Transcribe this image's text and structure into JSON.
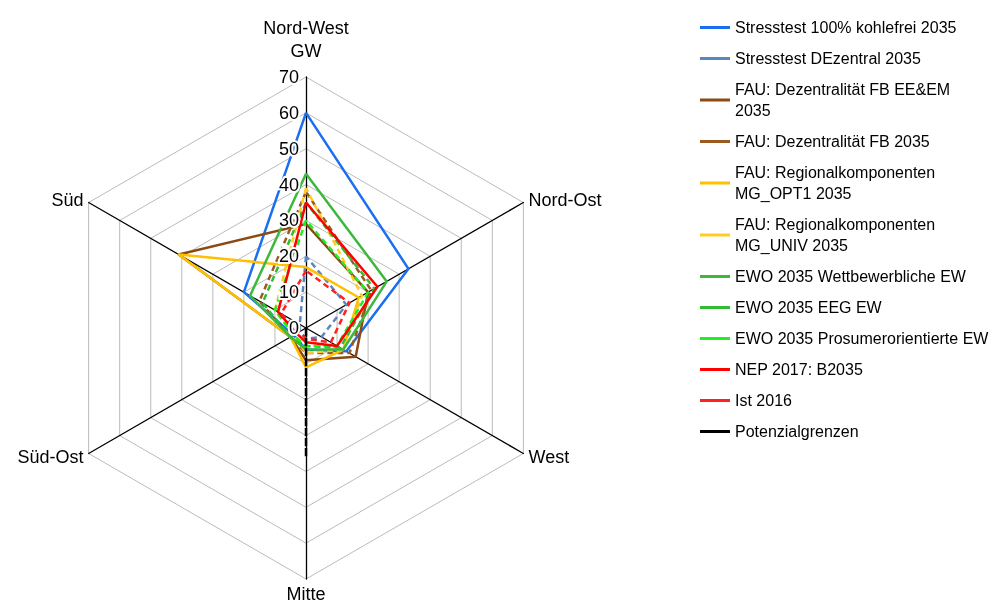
{
  "chart_data": {
    "type": "radar",
    "ylabel": "GW",
    "categories": [
      "Nord-West",
      "Nord-Ost",
      "West",
      "Mitte",
      "Süd-Ost",
      "Süd"
    ],
    "ylim": [
      0,
      70
    ],
    "yticks": [
      0,
      10,
      20,
      30,
      40,
      50,
      60,
      70
    ],
    "grid": true,
    "legend": "right",
    "marker": "none",
    "series": [
      {
        "name": "Stresstest 100% kohlefrei 2035",
        "color": "#1a6ff0",
        "line_style": "solid",
        "values": [
          60,
          33,
          13,
          6,
          4,
          20
        ]
      },
      {
        "name": "Stresstest DEzentral 2035",
        "color": "#5b87c0",
        "line_style": "dashed",
        "values": [
          20,
          13,
          5,
          3,
          2,
          2
        ]
      },
      {
        "name": "FAU: Dezentralität FB EE&EM 2035",
        "color": "#8b4a14",
        "line_style": "solid",
        "values": [
          29,
          20,
          16,
          9,
          5,
          41
        ]
      },
      {
        "name": "FAU: Dezentralität FB 2035",
        "color": "#9a5a20",
        "line_style": "dashed",
        "values": [
          38,
          21,
          14,
          7,
          5,
          15
        ]
      },
      {
        "name": "FAU: Regionalkomponenten MG_OPT1 2035",
        "color": "#ffc000",
        "line_style": "solid",
        "values": [
          17,
          17,
          12,
          11,
          5,
          41
        ]
      },
      {
        "name": "FAU: Regionalkomponenten MG_UNIV 2035",
        "color": "#ffcc22",
        "line_style": "dashed",
        "values": [
          39,
          18,
          12,
          7,
          4,
          10
        ]
      },
      {
        "name": "EWO 2035 Wettbewerbliche EW",
        "color": "#3cb93c",
        "line_style": "solid",
        "values": [
          43,
          26,
          12,
          6,
          5,
          18
        ]
      },
      {
        "name": "EWO 2035 EEG EW",
        "color": "#33bb33",
        "line_style": "dashed",
        "values": [
          35,
          22,
          11,
          5,
          5,
          14
        ]
      },
      {
        "name": "EWO 2035 Prosumerorientierte EW",
        "color": "#22ee22",
        "line_style": "dashed",
        "values": [
          30,
          20,
          10,
          5,
          4,
          10
        ]
      },
      {
        "name": "NEP 2017: B2035",
        "color": "#ff0000",
        "line_style": "solid",
        "values": [
          35,
          23,
          10,
          4,
          3,
          9
        ]
      },
      {
        "name": "Ist 2016",
        "color": "#ff2020",
        "line_style": "dashed",
        "values": [
          16,
          14,
          8,
          3,
          2,
          8
        ]
      },
      {
        "name": "Potenzialgrenzen",
        "color": "#000000",
        "line_style": "dashed",
        "values": [
          null,
          null,
          null,
          36,
          null,
          null
        ]
      }
    ]
  }
}
